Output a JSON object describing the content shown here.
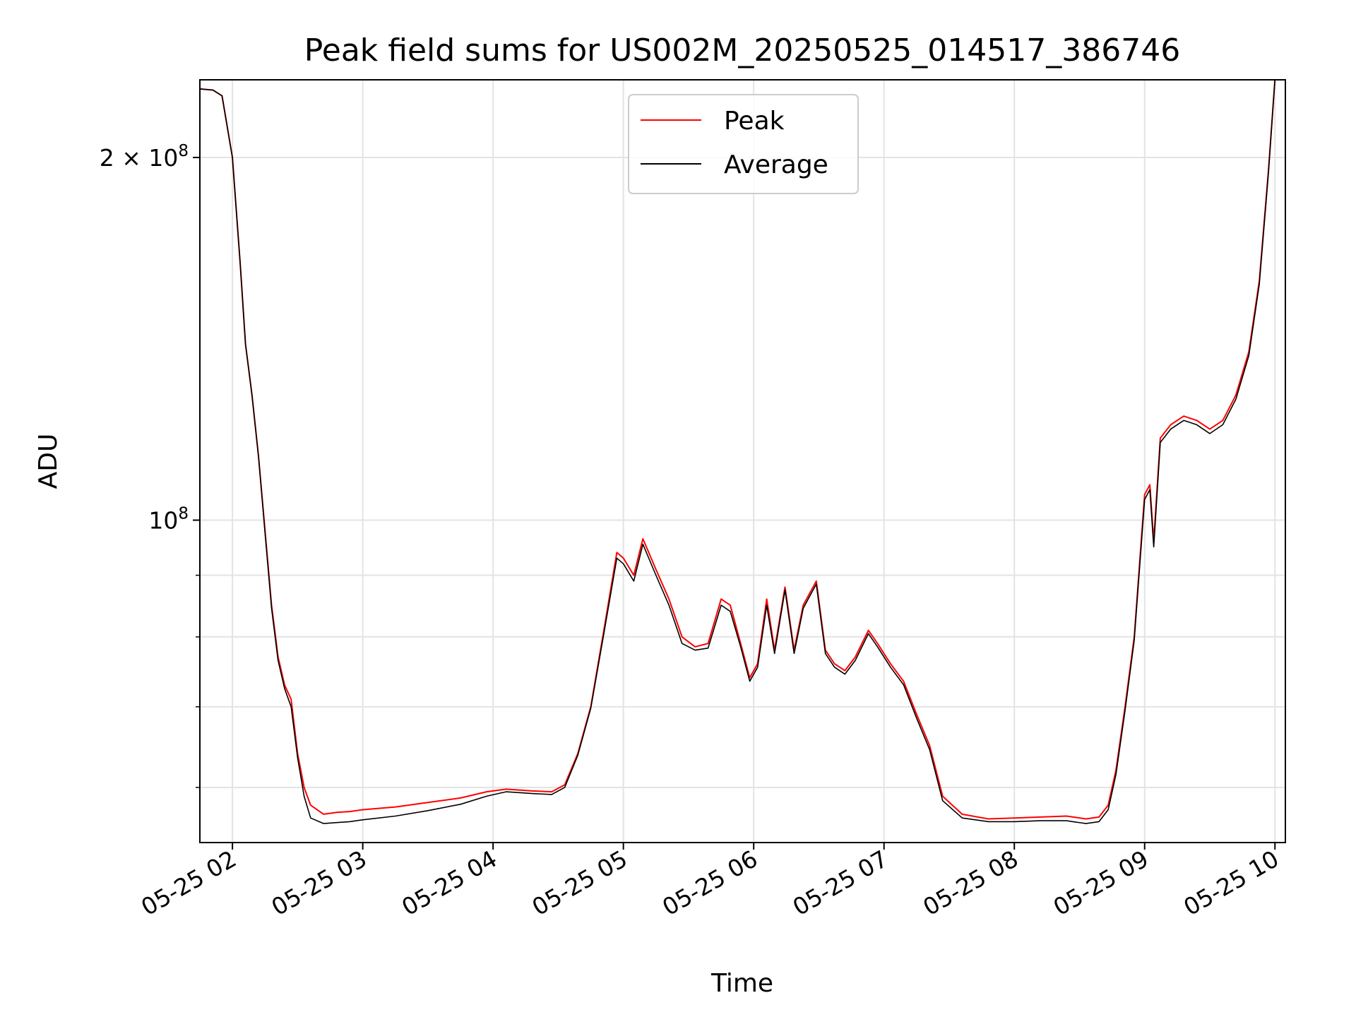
{
  "chart_data": {
    "type": "line",
    "title": "Peak field sums for US002M_20250525_014517_386746",
    "xlabel": "Time",
    "ylabel": "ADU",
    "x_unit": "hour of 2025-05-25",
    "xlim": [
      1.75,
      10.08
    ],
    "ylim": [
      54000000,
      232000000
    ],
    "yscale": "log",
    "grid": true,
    "legend_placement": "upper center",
    "x_tick_values": [
      2,
      3,
      4,
      5,
      6,
      7,
      8,
      9,
      10
    ],
    "x_tick_labels": [
      "05-25 02",
      "05-25 03",
      "05-25 04",
      "05-25 05",
      "05-25 06",
      "05-25 07",
      "05-25 08",
      "05-25 09",
      "05-25 10"
    ],
    "y_major_ticks": [
      {
        "value": 100000000,
        "label": "10",
        "exp": "8",
        "prefix": ""
      },
      {
        "value": 200000000,
        "label": "2 × 10",
        "exp": "8",
        "prefix": ""
      }
    ],
    "y_minor_ticks": [
      60000000,
      70000000,
      80000000,
      90000000
    ],
    "x": [
      1.75,
      1.85,
      1.92,
      2.0,
      2.06,
      2.1,
      2.15,
      2.2,
      2.25,
      2.3,
      2.35,
      2.4,
      2.45,
      2.5,
      2.55,
      2.6,
      2.7,
      2.8,
      2.9,
      3.0,
      3.25,
      3.5,
      3.75,
      3.95,
      4.1,
      4.3,
      4.45,
      4.55,
      4.65,
      4.75,
      4.85,
      4.95,
      5.0,
      5.08,
      5.15,
      5.25,
      5.35,
      5.45,
      5.55,
      5.65,
      5.75,
      5.82,
      5.9,
      5.97,
      6.03,
      6.1,
      6.16,
      6.24,
      6.31,
      6.38,
      6.48,
      6.55,
      6.62,
      6.7,
      6.78,
      6.88,
      6.95,
      7.05,
      7.15,
      7.25,
      7.35,
      7.45,
      7.6,
      7.8,
      8.0,
      8.2,
      8.4,
      8.55,
      8.65,
      8.72,
      8.78,
      8.85,
      8.92,
      9.0,
      9.04,
      9.07,
      9.12,
      9.2,
      9.3,
      9.4,
      9.5,
      9.6,
      9.7,
      9.8,
      9.88,
      9.95,
      10.0
    ],
    "series": [
      {
        "name": "Peak",
        "color": "#ff0000",
        "values": [
          228000000,
          227500000,
          225000000,
          200000000,
          163000000,
          140000000,
          127000000,
          113000000,
          98000000,
          85000000,
          77000000,
          73000000,
          71000000,
          64000000,
          60000000,
          58000000,
          57000000,
          57200000,
          57300000,
          57500000,
          57800000,
          58300000,
          58800000,
          59500000,
          59800000,
          59600000,
          59500000,
          60300000,
          64000000,
          70000000,
          81000000,
          94000000,
          93000000,
          90000000,
          96500000,
          91000000,
          86000000,
          80000000,
          78500000,
          79000000,
          86000000,
          85000000,
          79000000,
          74000000,
          76000000,
          86000000,
          78000000,
          88000000,
          78000000,
          85000000,
          89000000,
          78000000,
          76000000,
          75000000,
          77000000,
          81000000,
          79000000,
          76000000,
          73500000,
          69000000,
          65000000,
          59000000,
          57000000,
          56500000,
          56600000,
          56700000,
          56800000,
          56500000,
          56700000,
          58000000,
          62000000,
          70000000,
          80000000,
          105000000,
          107000000,
          96000000,
          117000000,
          120000000,
          122000000,
          121000000,
          119000000,
          121000000,
          127000000,
          138000000,
          158000000,
          195000000,
          232000000
        ]
      },
      {
        "name": "Average",
        "color": "#000000",
        "values": [
          228000000,
          227500000,
          225000000,
          200000000,
          163000000,
          140000000,
          127000000,
          113000000,
          97500000,
          84500000,
          76500000,
          72500000,
          70000000,
          63500000,
          59000000,
          56600000,
          56000000,
          56100000,
          56200000,
          56400000,
          56800000,
          57400000,
          58100000,
          59000000,
          59500000,
          59300000,
          59200000,
          60000000,
          63800000,
          69800000,
          80500000,
          93000000,
          92000000,
          89000000,
          95500000,
          90000000,
          85000000,
          79000000,
          78000000,
          78300000,
          85000000,
          84000000,
          78500000,
          73500000,
          75500000,
          85000000,
          77500000,
          87500000,
          77500000,
          84500000,
          88500000,
          77500000,
          75500000,
          74500000,
          76500000,
          80500000,
          78500000,
          75500000,
          73000000,
          68500000,
          64500000,
          58500000,
          56600000,
          56200000,
          56200000,
          56300000,
          56300000,
          56000000,
          56200000,
          57500000,
          61500000,
          69500000,
          79500000,
          104000000,
          106000000,
          95000000,
          116000000,
          119000000,
          121000000,
          120000000,
          118000000,
          120000000,
          126000000,
          137000000,
          157000000,
          194000000,
          232000000
        ]
      }
    ]
  }
}
